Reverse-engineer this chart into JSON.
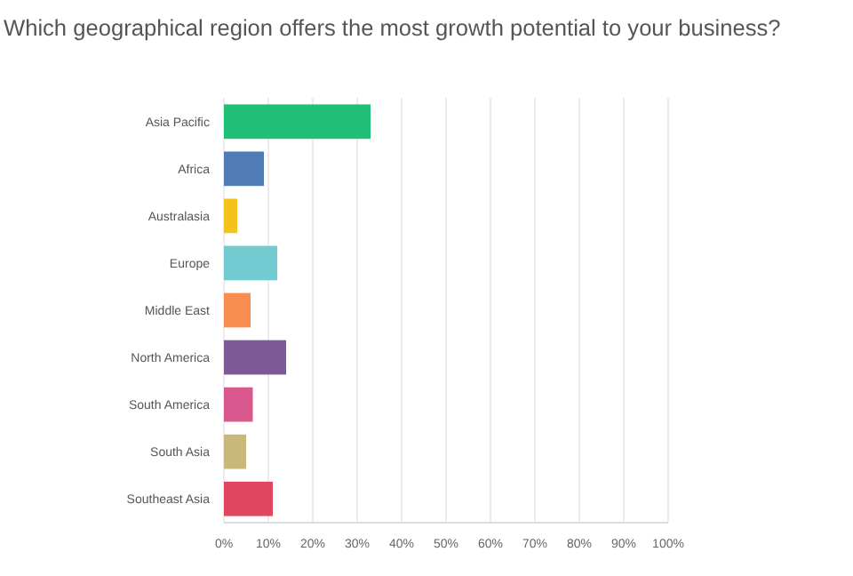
{
  "chart_data": {
    "type": "bar",
    "orientation": "horizontal",
    "title": "Which geographical region offers the most growth potential to your business?",
    "categories": [
      "Asia Pacific",
      "Africa",
      "Australasia",
      "Europe",
      "Middle East",
      "North America",
      "South America",
      "South Asia",
      "Southeast Asia"
    ],
    "values": [
      33,
      9,
      3,
      12,
      6,
      14,
      6.5,
      5,
      11
    ],
    "colors": [
      "#1fbf75",
      "#507cb6",
      "#f4c21b",
      "#71cbd0",
      "#f98d51",
      "#7d5998",
      "#d9598f",
      "#c9b77b",
      "#e0465e"
    ],
    "xlim": [
      0,
      100
    ],
    "xticks": [
      {
        "value": 0,
        "label": "0%"
      },
      {
        "value": 10,
        "label": "10%"
      },
      {
        "value": 20,
        "label": "20%"
      },
      {
        "value": 30,
        "label": "30%"
      },
      {
        "value": 40,
        "label": "40%"
      },
      {
        "value": 50,
        "label": "50%"
      },
      {
        "value": 60,
        "label": "60%"
      },
      {
        "value": 70,
        "label": "70%"
      },
      {
        "value": 80,
        "label": "80%"
      },
      {
        "value": 90,
        "label": "90%"
      },
      {
        "value": 100,
        "label": "100%"
      }
    ],
    "grid": "x"
  }
}
